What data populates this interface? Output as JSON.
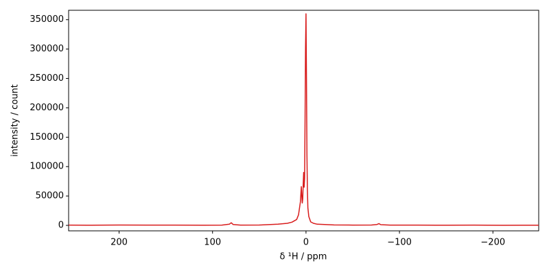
{
  "chart_data": {
    "type": "line",
    "x_label": "δ ¹H / ppm",
    "y_label": "intensity / count",
    "x": [
      254,
      230,
      200,
      170,
      140,
      110,
      90,
      82,
      80,
      78,
      70,
      50,
      30,
      20,
      15,
      10,
      8,
      6,
      5,
      4.5,
      4,
      3.5,
      3,
      2.5,
      2,
      1.5,
      1,
      0.5,
      0,
      -0.5,
      -1,
      -1.5,
      -2,
      -3,
      -5,
      -8,
      -12,
      -20,
      -30,
      -50,
      -70,
      -76,
      -78,
      -80,
      -90,
      -120,
      -150,
      -180,
      -210,
      -249
    ],
    "series": [
      {
        "color": "#d81b1b",
        "values": [
          500,
          300,
          600,
          400,
          500,
          300,
          500,
          2000,
          4500,
          1500,
          500,
          600,
          2000,
          3500,
          5500,
          10000,
          18000,
          40000,
          66000,
          50000,
          38000,
          45000,
          70000,
          90000,
          65000,
          80000,
          180000,
          300000,
          360000,
          250000,
          120000,
          60000,
          30000,
          15000,
          6000,
          3500,
          2000,
          1500,
          800,
          500,
          600,
          1500,
          3000,
          1200,
          500,
          400,
          300,
          400,
          200,
          300
        ]
      }
    ],
    "xlim": [
      254,
      -249
    ],
    "ylim": [
      -9300,
      366000
    ],
    "xticks": [
      200,
      100,
      0,
      {
        "value": -100,
        "label": "−100"
      },
      {
        "value": -200,
        "label": "−200"
      }
    ],
    "yticks": [
      0,
      50000,
      100000,
      150000,
      200000,
      250000,
      300000,
      350000
    ],
    "grid": false
  }
}
